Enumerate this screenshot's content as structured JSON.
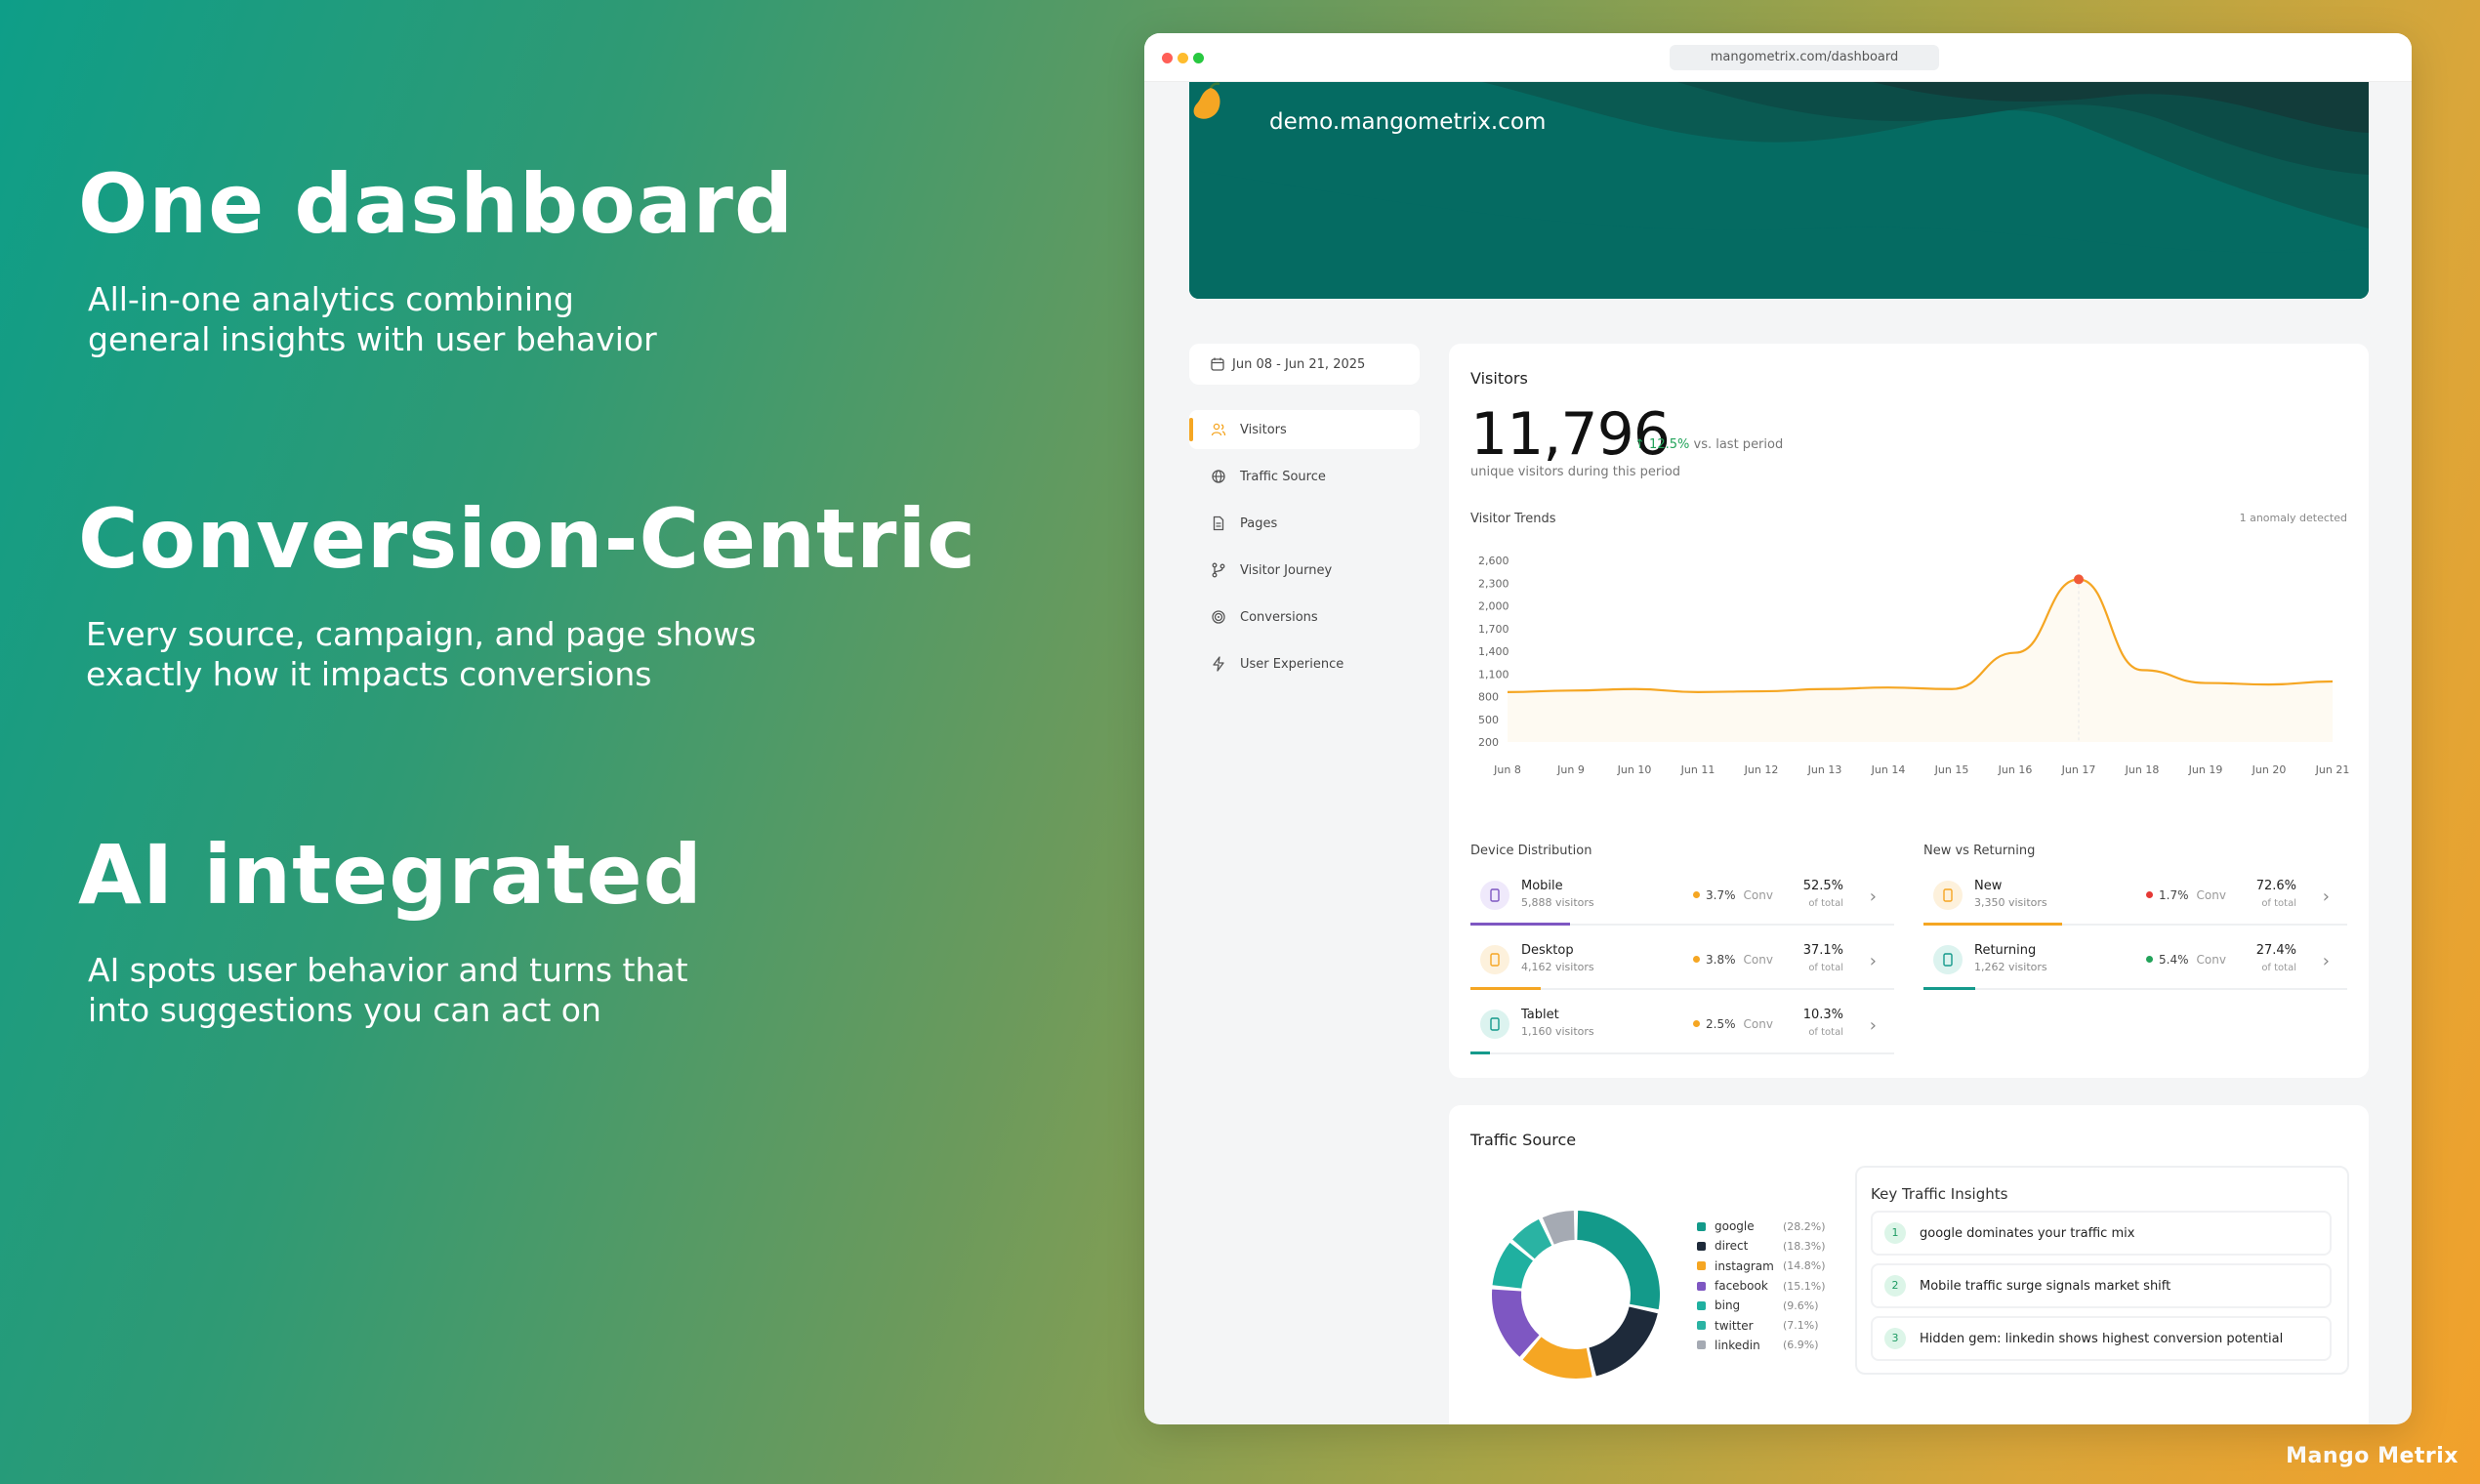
{
  "hero": [
    {
      "title": "One dashboard",
      "text": "All-in-one analytics combining\ngeneral insights with user behavior"
    },
    {
      "title": "Conversion-Centric",
      "text": " Every source, campaign, and page shows\nexactly how it impacts conversions"
    },
    {
      "title": "AI integrated",
      "text": "AI spots user behavior and turns that\ninto suggestions you can act on"
    }
  ],
  "brand": "Mango Metrix",
  "browser": {
    "url": "mangometrix.com/dashboard"
  },
  "site": {
    "name": "demo.mangometrix.com"
  },
  "sidebar": {
    "date_range": "Jun 08 - Jun 21, 2025",
    "items": [
      {
        "label": "Visitors",
        "icon": "users-icon",
        "active": true
      },
      {
        "label": "Traffic Source",
        "icon": "globe-icon"
      },
      {
        "label": "Pages",
        "icon": "document-icon"
      },
      {
        "label": "Visitor Journey",
        "icon": "branch-icon"
      },
      {
        "label": "Conversions",
        "icon": "target-icon"
      },
      {
        "label": "User Experience",
        "icon": "bolt-icon"
      }
    ]
  },
  "visitors": {
    "title": "Visitors",
    "total": "11,796",
    "delta": "12.5%",
    "delta_suffix": "vs. last period",
    "subtitle": "unique visitors during this period",
    "trend_label": "Visitor Trends",
    "anomaly": "1 anomaly detected"
  },
  "chart_data": {
    "type": "line",
    "title": "Visitor Trends",
    "x": [
      "Jun 8",
      "Jun 9",
      "Jun 10",
      "Jun 11",
      "Jun 12",
      "Jun 13",
      "Jun 14",
      "Jun 15",
      "Jun 16",
      "Jun 17",
      "Jun 18",
      "Jun 19",
      "Jun 20",
      "Jun 21"
    ],
    "y_ticks": [
      "2,600",
      "2,300",
      "2,000",
      "1,700",
      "1,400",
      "1,100",
      "800",
      "500",
      "200"
    ],
    "ylim": [
      200,
      2600
    ],
    "series": [
      {
        "values": [
          860,
          880,
          900,
          860,
          870,
          900,
          920,
          900,
          1380,
          2350,
          1150,
          980,
          960,
          1000
        ]
      }
    ],
    "anomaly_index": 9,
    "colors": {
      "line": "#f5a623",
      "anomaly": "#f05a3a"
    }
  },
  "device_distribution": {
    "label": "Device Distribution",
    "rows": [
      {
        "name": "Mobile",
        "sub": "5,888 visitors",
        "conv": "3.7%",
        "conv_label": "Conv",
        "pct": "52.5%",
        "of": "of total",
        "color": "#7e57c2",
        "icon_bg": "#efe9fb",
        "icon": "mobile-icon",
        "share": 0.525
      },
      {
        "name": "Desktop",
        "sub": "4,162 visitors",
        "conv": "3.8%",
        "conv_label": "Conv",
        "pct": "37.1%",
        "of": "of total",
        "color": "#f5a623",
        "icon_bg": "#fdf1dc",
        "icon": "monitor-icon",
        "share": 0.371
      },
      {
        "name": "Tablet",
        "sub": "1,160 visitors",
        "conv": "2.5%",
        "conv_label": "Conv",
        "pct": "10.3%",
        "of": "of total",
        "color": "#159a8c",
        "icon_bg": "#dcf3ef",
        "icon": "tablet-icon",
        "share": 0.103
      }
    ]
  },
  "new_vs_returning": {
    "label": "New vs Returning",
    "rows": [
      {
        "name": "New",
        "sub": "3,350 visitors",
        "conv": "1.7%",
        "conv_label": "Conv",
        "pct": "72.6%",
        "of": "of total",
        "color": "#f5a623",
        "dot": "#e53935",
        "icon_bg": "#fdf1dc",
        "icon": "user-icon",
        "share": 0.726
      },
      {
        "name": "Returning",
        "sub": "1,262 visitors",
        "conv": "5.4%",
        "conv_label": "Conv",
        "pct": "27.4%",
        "of": "of total",
        "color": "#159a8c",
        "dot": "#22a35a",
        "icon_bg": "#dcf3ef",
        "icon": "users-icon",
        "share": 0.274
      }
    ]
  },
  "traffic": {
    "title": "Traffic Source",
    "sources": [
      {
        "name": "google",
        "pct": "(28.2%)",
        "value": 28.2,
        "color": "#139a8a"
      },
      {
        "name": "direct",
        "pct": "(18.3%)",
        "value": 18.3,
        "color": "#1e2a3a"
      },
      {
        "name": "instagram",
        "pct": "(14.8%)",
        "value": 14.8,
        "color": "#f5a623"
      },
      {
        "name": "facebook",
        "pct": "(15.1%)",
        "value": 15.1,
        "color": "#7e57c2"
      },
      {
        "name": "bing",
        "pct": "(9.6%)",
        "value": 9.6,
        "color": "#1fb0a0"
      },
      {
        "name": "twitter",
        "pct": "(7.1%)",
        "value": 7.1,
        "color": "#2ab3a3"
      },
      {
        "name": "linkedin",
        "pct": "(6.9%)",
        "value": 6.9,
        "color": "#a5aab3"
      }
    ],
    "insights_title": "Key Traffic Insights",
    "insights": [
      {
        "num": "1",
        "text": "google dominates your traffic mix"
      },
      {
        "num": "2",
        "text": "Mobile traffic surge signals market shift"
      },
      {
        "num": "3",
        "text": "Hidden gem: linkedin shows highest conversion potential"
      }
    ]
  }
}
